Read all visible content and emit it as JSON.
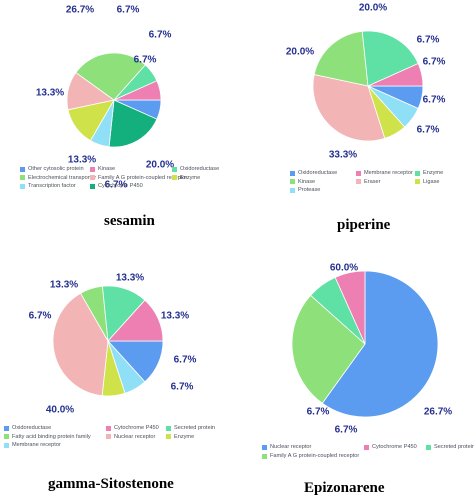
{
  "colors": {
    "blue": "#5b9bf0",
    "pink": "#ee7fb3",
    "teal": "#5fe0a5",
    "green": "#8ee07a",
    "salmon": "#f3b4b6",
    "lime": "#cfe24a",
    "sky": "#8fe0f6",
    "darkgreen": "#13b07e",
    "label": "#24308f"
  },
  "chart_data": [
    {
      "type": "pie",
      "title": "sesamin",
      "slices": [
        {
          "category": "Other cytosolic protein",
          "value": 6.7,
          "label": "6.7%",
          "color": "#5b9bf0"
        },
        {
          "category": "Cytochrome P450",
          "value": 20.0,
          "label": "20.0%",
          "color": "#13b07e"
        },
        {
          "category": "Transcription factor",
          "value": 6.7,
          "label": "6.7%",
          "color": "#8fe0f6"
        },
        {
          "category": "Enzyme",
          "value": 13.3,
          "label": "13.3%",
          "color": "#cfe24a"
        },
        {
          "category": "Family A G protein-coupled receptor",
          "value": 13.3,
          "label": "13.3%",
          "color": "#f3b4b6"
        },
        {
          "category": "Electrochemical transporter",
          "value": 26.7,
          "label": "26.7%",
          "color": "#8ee07a"
        },
        {
          "category": "Oxidoreductase",
          "value": 6.7,
          "label": "6.7%",
          "color": "#5fe0a5"
        },
        {
          "category": "Kinase",
          "value": 6.7,
          "label": "6.7%",
          "color": "#ee7fb3"
        }
      ],
      "legend": [
        {
          "label": "Other cytosolic protein",
          "color": "#5b9bf0"
        },
        {
          "label": "Kinase",
          "color": "#ee7fb3"
        },
        {
          "label": "Oxidoreductase",
          "color": "#5fe0a5"
        },
        {
          "label": "Electrochemical transporter",
          "color": "#8ee07a"
        },
        {
          "label": "Family A G protein-coupled receptor",
          "color": "#f3b4b6"
        },
        {
          "label": "Enzyme",
          "color": "#cfe24a"
        },
        {
          "label": "Transcription factor",
          "color": "#8fe0f6"
        },
        {
          "label": "Cytochrome P450",
          "color": "#13b07e"
        }
      ],
      "legend_placement": "bottom"
    },
    {
      "type": "pie",
      "title": "piperine",
      "slices": [
        {
          "category": "Oxidoreductase",
          "value": 6.7,
          "label": "6.7%",
          "color": "#5b9bf0"
        },
        {
          "category": "Protease",
          "value": 6.7,
          "label": "6.7%",
          "color": "#8fe0f6"
        },
        {
          "category": "Ligase",
          "value": 6.7,
          "label": "6.7%",
          "color": "#cfe24a"
        },
        {
          "category": "Eraser",
          "value": 33.3,
          "label": "33.3%",
          "color": "#f3b4b6"
        },
        {
          "category": "Kinase",
          "value": 20.0,
          "label": "20.0%",
          "color": "#8ee07a"
        },
        {
          "category": "Enzyme",
          "value": 20.0,
          "label": "20.0%",
          "color": "#5fe0a5"
        },
        {
          "category": "Membrane receptor",
          "value": 6.7,
          "label": "6.7%",
          "color": "#ee7fb3"
        }
      ],
      "legend": [
        {
          "label": "Oxidoreductase",
          "color": "#5b9bf0"
        },
        {
          "label": "Membrane receptor",
          "color": "#ee7fb3"
        },
        {
          "label": "Enzyme",
          "color": "#5fe0a5"
        },
        {
          "label": "Kinase",
          "color": "#8ee07a"
        },
        {
          "label": "Eraser",
          "color": "#f3b4b6"
        },
        {
          "label": "Ligase",
          "color": "#cfe24a"
        },
        {
          "label": "Protease",
          "color": "#8fe0f6"
        }
      ],
      "legend_placement": "bottom"
    },
    {
      "type": "pie",
      "title": "gamma-Sitostenone",
      "slices": [
        {
          "category": "Oxidoreductase",
          "value": 13.3,
          "label": "13.3%",
          "color": "#5b9bf0"
        },
        {
          "category": "Membrane receptor",
          "value": 6.7,
          "label": "6.7%",
          "color": "#8fe0f6"
        },
        {
          "category": "Enzyme",
          "value": 6.7,
          "label": "6.7%",
          "color": "#cfe24a"
        },
        {
          "category": "Nuclear receptor",
          "value": 40.0,
          "label": "40.0%",
          "color": "#f3b4b6"
        },
        {
          "category": "Fatty acid binding protein family",
          "value": 6.7,
          "label": "6.7%",
          "color": "#8ee07a"
        },
        {
          "category": "Secreted protein",
          "value": 13.3,
          "label": "13.3%",
          "color": "#5fe0a5"
        },
        {
          "category": "Cytochrome P450",
          "value": 13.3,
          "label": "13.3%",
          "color": "#ee7fb3"
        }
      ],
      "legend": [
        {
          "label": "Oxidoreductase",
          "color": "#5b9bf0"
        },
        {
          "label": "Cytochrome P450",
          "color": "#ee7fb3"
        },
        {
          "label": "Secreted protein",
          "color": "#5fe0a5"
        },
        {
          "label": "Fatty acid binding protein family",
          "color": "#8ee07a"
        },
        {
          "label": "Nuclear receptor",
          "color": "#f3b4b6"
        },
        {
          "label": "Enzyme",
          "color": "#cfe24a"
        },
        {
          "label": "Membrane receptor",
          "color": "#8fe0f6"
        }
      ],
      "legend_placement": "bottom"
    },
    {
      "type": "pie",
      "title": "Epizonarene",
      "slices": [
        {
          "category": "Nuclear receptor",
          "value": 60.0,
          "label": "60.0%",
          "color": "#5b9bf0"
        },
        {
          "category": "Family A G protein-coupled receptor",
          "value": 26.7,
          "label": "26.7%",
          "color": "#8ee07a"
        },
        {
          "category": "Secreted protein",
          "value": 6.7,
          "label": "6.7%",
          "color": "#5fe0a5"
        },
        {
          "category": "Cytochrome P450",
          "value": 6.7,
          "label": "6.7%",
          "color": "#ee7fb3"
        }
      ],
      "legend": [
        {
          "label": "Nuclear receptor",
          "color": "#5b9bf0"
        },
        {
          "label": "Cytochrome P450",
          "color": "#ee7fb3"
        },
        {
          "label": "Secreted protein",
          "color": "#5fe0a5"
        },
        {
          "label": "Family A G protein-coupled receptor",
          "color": "#8ee07a"
        }
      ],
      "legend_placement": "bottom"
    }
  ]
}
